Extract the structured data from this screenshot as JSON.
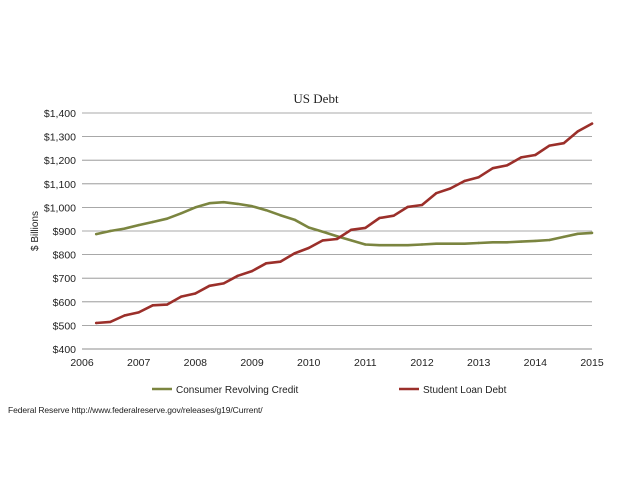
{
  "chart_data": {
    "type": "line",
    "title": "US Debt",
    "xlabel": "",
    "ylabel": "$ Billions",
    "xlim": [
      2006,
      2015
    ],
    "ylim": [
      400,
      1400
    ],
    "x_ticks": [
      "2006",
      "2007",
      "2008",
      "2009",
      "2010",
      "2011",
      "2012",
      "2013",
      "2014",
      "2015"
    ],
    "y_ticks": [
      "$400",
      "$500",
      "$600",
      "$700",
      "$800",
      "$900",
      "$1,000",
      "$1,100",
      "$1,200",
      "$1,300",
      "$1,400"
    ],
    "grid": "horizontal",
    "legend_position": "bottom",
    "series": [
      {
        "name": "Consumer Revolving Credit",
        "color": "#7b8540",
        "x": [
          2006.25,
          2006.5,
          2006.75,
          2007.0,
          2007.25,
          2007.5,
          2007.75,
          2008.0,
          2008.25,
          2008.5,
          2008.75,
          2009.0,
          2009.25,
          2009.5,
          2009.75,
          2010.0,
          2010.25,
          2010.5,
          2010.75,
          2011.0,
          2011.25,
          2011.5,
          2011.75,
          2012.0,
          2012.25,
          2012.5,
          2012.75,
          2013.0,
          2013.25,
          2013.5,
          2013.75,
          2014.0,
          2014.25,
          2014.5,
          2014.75,
          2015.0
        ],
        "values": [
          887,
          900,
          910,
          925,
          938,
          952,
          975,
          1000,
          1018,
          1022,
          1015,
          1005,
          988,
          967,
          948,
          915,
          897,
          878,
          860,
          843,
          840,
          840,
          840,
          843,
          846,
          846,
          846,
          849,
          852,
          852,
          855,
          858,
          862,
          875,
          888,
          892
        ]
      },
      {
        "name": "Student Loan Debt",
        "color": "#9b2f2a",
        "x": [
          2006.25,
          2006.5,
          2006.75,
          2007.0,
          2007.25,
          2007.5,
          2007.75,
          2008.0,
          2008.25,
          2008.5,
          2008.75,
          2009.0,
          2009.25,
          2009.5,
          2009.75,
          2010.0,
          2010.25,
          2010.5,
          2010.75,
          2011.0,
          2011.25,
          2011.5,
          2011.75,
          2012.0,
          2012.25,
          2012.5,
          2012.75,
          2013.0,
          2013.25,
          2013.5,
          2013.75,
          2014.0,
          2014.25,
          2014.5,
          2014.75,
          2015.0
        ],
        "values": [
          510,
          515,
          542,
          555,
          585,
          588,
          622,
          635,
          668,
          678,
          710,
          730,
          763,
          770,
          805,
          828,
          860,
          866,
          905,
          913,
          955,
          965,
          1002,
          1010,
          1060,
          1080,
          1112,
          1128,
          1166,
          1178,
          1212,
          1222,
          1262,
          1272,
          1322,
          1355
        ]
      }
    ]
  },
  "source_note": "Federal Reserve http://www.federalreserve.gov/releases/g19/Current/"
}
